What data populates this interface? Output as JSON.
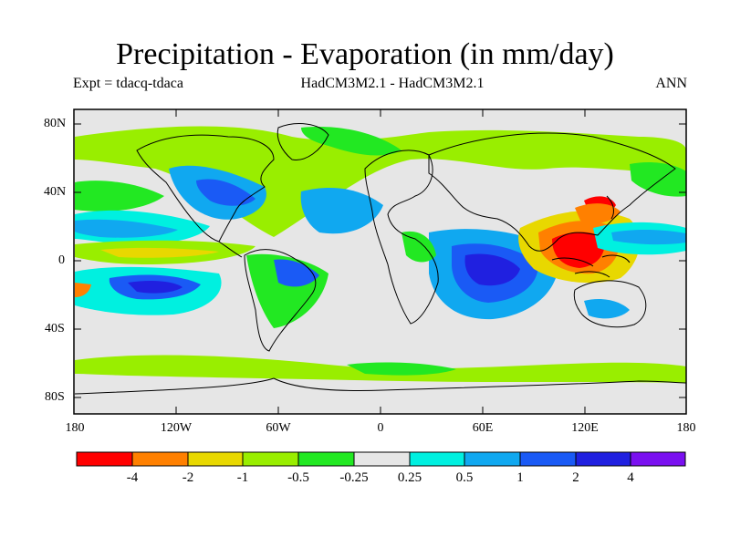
{
  "title": "Precipitation - Evaporation (in mm/day)",
  "subtitle_left": "Expt = tdacq-tdaca",
  "subtitle_center": "HadCM3M2.1 - HadCM3M2.1",
  "subtitle_right": "ANN",
  "y_ticks": [
    "80N",
    "40N",
    "0",
    "40S",
    "80S"
  ],
  "x_ticks": [
    "180",
    "120W",
    "60W",
    "0",
    "60E",
    "120E",
    "180"
  ],
  "colorbar": {
    "colors": [
      "#ff0000",
      "#ff8000",
      "#e8d800",
      "#99ee00",
      "#22e822",
      "#e6e6e6",
      "#00f0e0",
      "#10a8f0",
      "#1a5af5",
      "#2020e0",
      "#7a10f0"
    ],
    "labels": [
      "-4",
      "-2",
      "-1",
      "-0.5",
      "-0.25",
      "0.25",
      "0.5",
      "1",
      "2",
      "4"
    ]
  }
}
